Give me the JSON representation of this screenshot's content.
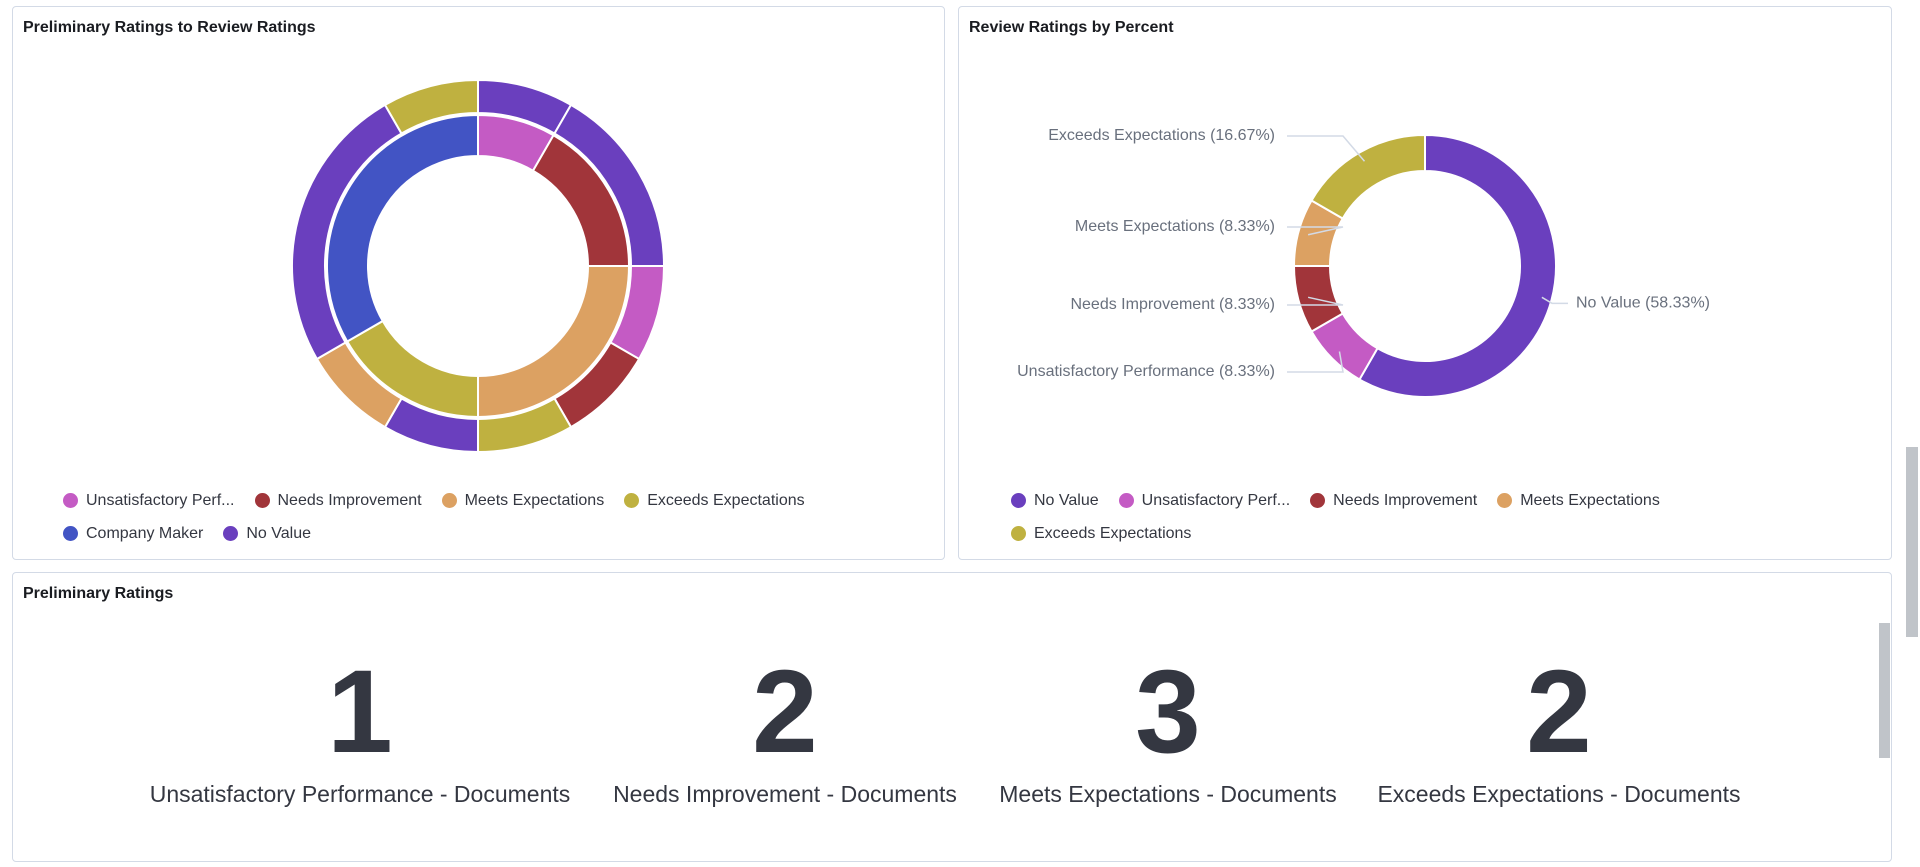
{
  "chart_data": [
    {
      "type": "sunburst",
      "title": "Preliminary Ratings to Review Ratings",
      "legend": [
        {
          "name": "Unsatisfactory Perf...",
          "color": "#c45bc4"
        },
        {
          "name": "Needs Improvement",
          "color": "#a1353a"
        },
        {
          "name": "Meets Expectations",
          "color": "#dca162"
        },
        {
          "name": "Exceeds Expectations",
          "color": "#bfb140"
        },
        {
          "name": "Company Maker",
          "color": "#4254c4"
        },
        {
          "name": "No Value",
          "color": "#6a3fbe"
        }
      ],
      "slices": [
        {
          "name": "Unsatisfactory Perf...",
          "value": 1,
          "children": [
            {
              "name": "No Value",
              "value": 1
            }
          ]
        },
        {
          "name": "Needs Improvement",
          "value": 2,
          "children": [
            {
              "name": "No Value",
              "value": 2
            }
          ]
        },
        {
          "name": "Meets Expectations",
          "value": 3,
          "children": [
            {
              "name": "Unsatisfactory Perf...",
              "value": 1
            },
            {
              "name": "Needs Improvement",
              "value": 1
            },
            {
              "name": "Exceeds Expectations",
              "value": 1
            }
          ]
        },
        {
          "name": "Exceeds Expectations",
          "value": 2,
          "children": [
            {
              "name": "No Value",
              "value": 1
            },
            {
              "name": "Meets Expectations",
              "value": 1
            }
          ]
        },
        {
          "name": "Company Maker",
          "value": 4,
          "children": [
            {
              "name": "No Value",
              "value": 3
            },
            {
              "name": "Exceeds Expectations",
              "value": 1
            }
          ]
        }
      ]
    },
    {
      "type": "donut",
      "title": "Review Ratings by Percent",
      "categories": [
        "No Value",
        "Unsatisfactory Perf...",
        "Needs Improvement",
        "Meets Expectations",
        "Exceeds Expectations"
      ],
      "colors": [
        "#6a3fbe",
        "#c45bc4",
        "#a1353a",
        "#dca162",
        "#bfb140"
      ],
      "values": [
        58.33,
        8.33,
        8.33,
        8.33,
        16.67
      ],
      "value_labels": [
        "No Value (58.33%)",
        "Unsatisfactory Performance (8.33%)",
        "Needs Improvement (8.33%)",
        "Meets Expectations (8.33%)",
        "Exceeds Expectations (16.67%)"
      ]
    }
  ],
  "metrics": {
    "title": "Preliminary Ratings",
    "items": [
      {
        "value": 1,
        "label": "Unsatisfactory Performance - Documents"
      },
      {
        "value": 2,
        "label": "Needs Improvement - Documents"
      },
      {
        "value": 3,
        "label": "Meets Expectations - Documents"
      },
      {
        "value": 2,
        "label": "Exceeds Expectations - Documents"
      }
    ]
  }
}
